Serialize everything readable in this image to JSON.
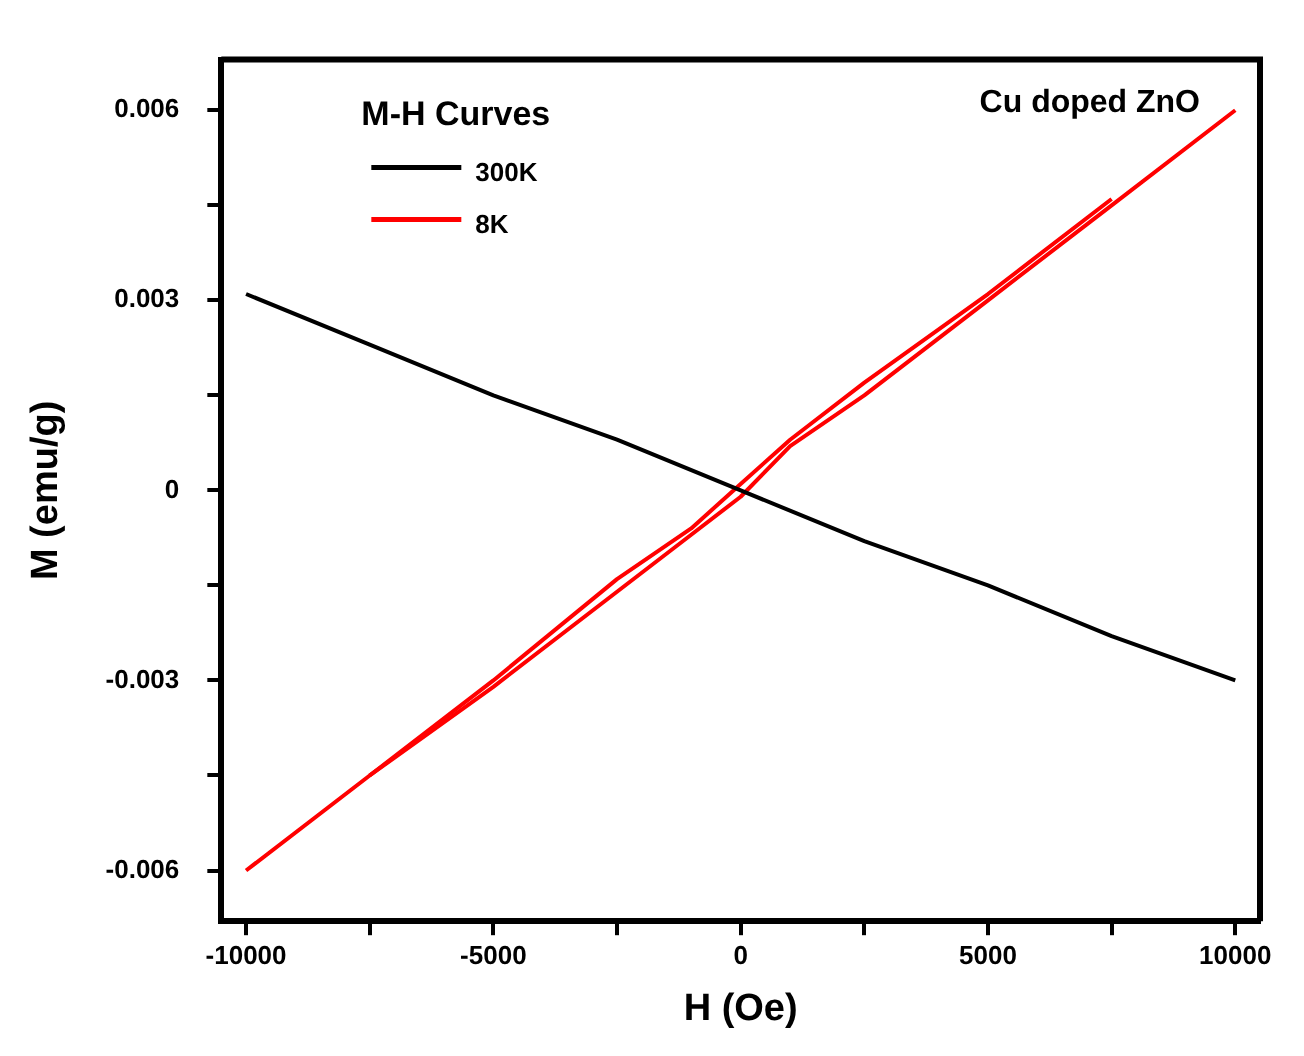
{
  "chart_data": {
    "type": "line",
    "xlabel": "H (Oe)",
    "ylabel": "M (emu/g)",
    "legend_title": "M-H Curves",
    "legend": "top left",
    "annotations": [
      "Cu doped ZnO"
    ],
    "xlim": [
      -10500,
      10500
    ],
    "xticks": [
      -10000,
      {
        "value": -7500,
        "label": null
      },
      -5000,
      {
        "value": -2500,
        "label": null
      },
      0,
      {
        "value": 2500,
        "label": null
      },
      5000,
      {
        "value": 7500,
        "label": null
      },
      10000
    ],
    "ylim": [
      -0.0068,
      0.0068
    ],
    "yticks": [
      -0.006,
      {
        "value": -0.0045,
        "label": null
      },
      -0.003,
      {
        "value": -0.0015,
        "label": null
      },
      0.0,
      {
        "value": 0.0015,
        "label": null
      },
      0.003,
      {
        "value": 0.0045,
        "label": null
      },
      0.006
    ],
    "grid": false,
    "marker": "none",
    "line_style": "solid",
    "series": [
      {
        "name": "300K",
        "color": "#000000",
        "x": [
          -10000,
          -7500,
          -5000,
          -2500,
          0,
          2500,
          5000,
          7500,
          10000
        ],
        "values": [
          0.0031,
          0.0023,
          0.0015,
          0.0008,
          0.0,
          -0.0008,
          -0.0015,
          -0.0023,
          -0.003
        ]
      },
      {
        "name": "8K",
        "color": "#ff0000",
        "x": [
          -10000,
          -7500,
          -5000,
          -2500,
          -1000,
          0,
          1000,
          2500,
          5000,
          7500,
          10000
        ],
        "values": [
          -0.006,
          -0.0045,
          -0.0031,
          -0.0016,
          -0.0007,
          -0.0001,
          0.0007,
          0.0015,
          0.003,
          0.0045,
          0.006
        ]
      },
      {
        "color": "#ff0000",
        "x": [
          -7500,
          -5000,
          -2500,
          -1000,
          0,
          1000,
          2500,
          5000,
          7500
        ],
        "values": [
          -0.0045,
          -0.003,
          -0.0014,
          -0.0006,
          0.0001,
          0.0008,
          0.0017,
          0.0031,
          0.0046
        ]
      }
    ]
  }
}
